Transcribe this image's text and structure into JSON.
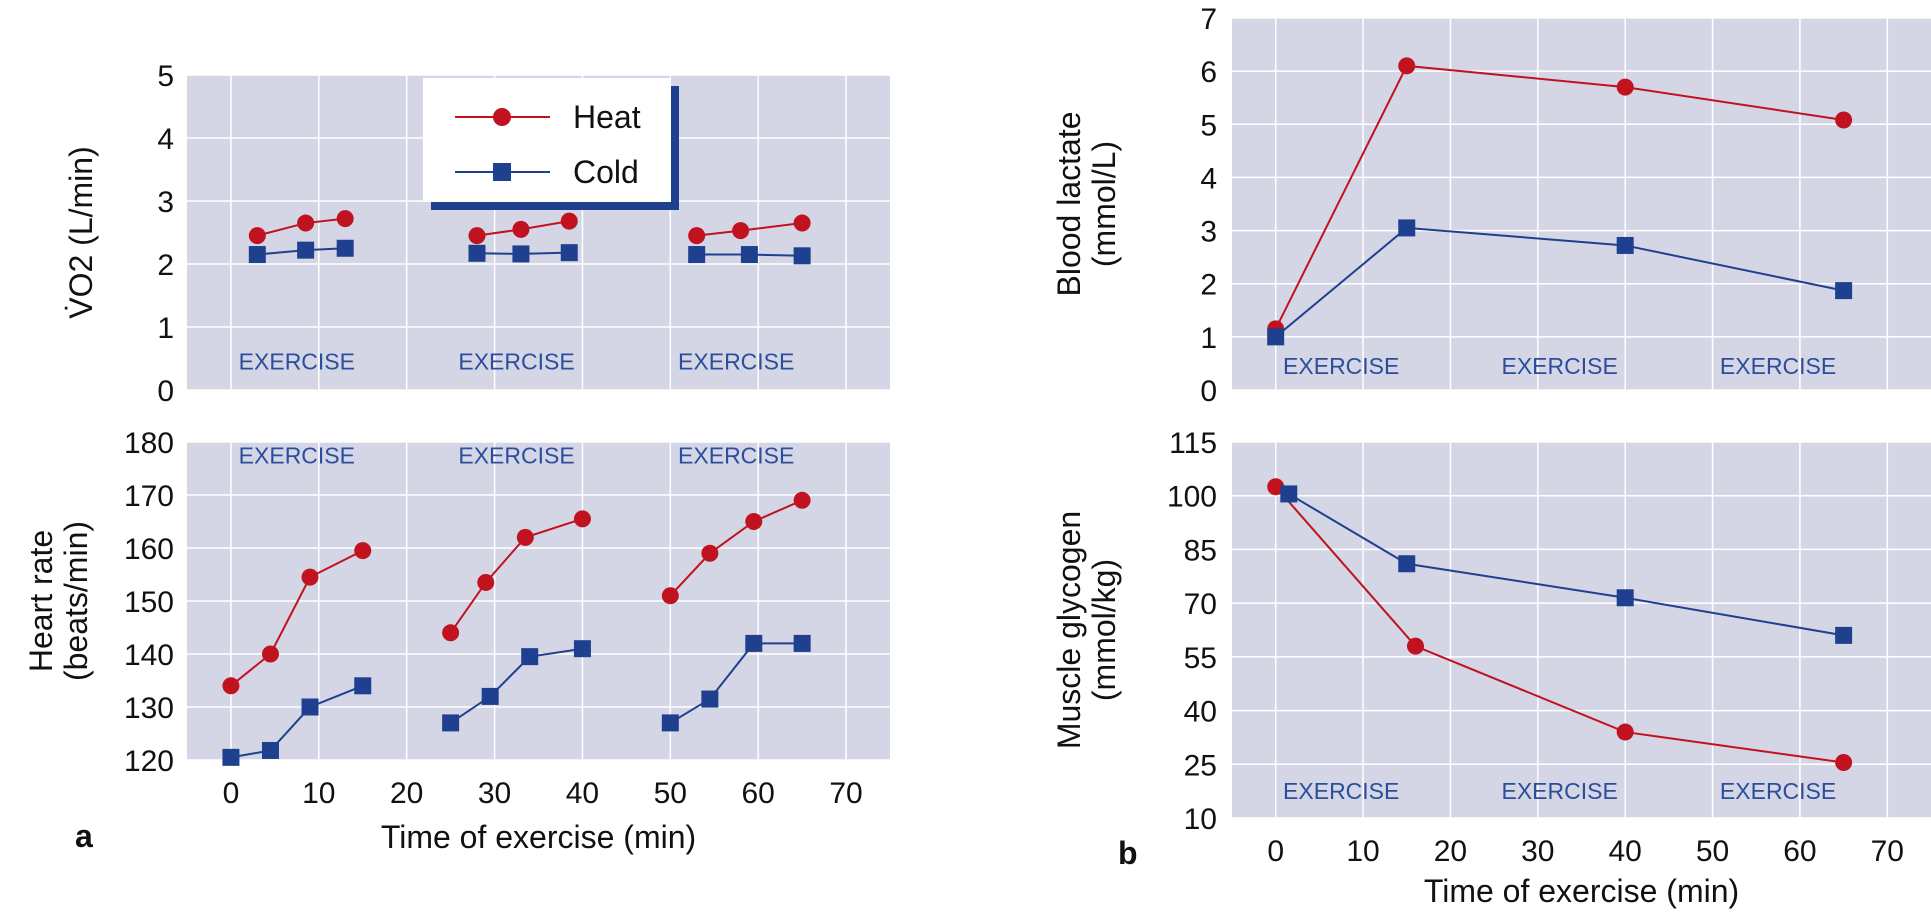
{
  "colors": {
    "heat": "#c1121f",
    "cold": "#1f3f8f",
    "panel": "#d4d6e6",
    "grid": "#ffffff",
    "exercise_text": "#2b4e9c"
  },
  "legend": {
    "heat": "Heat",
    "cold": "Cold"
  },
  "exercise_label": "EXERCISE",
  "chart_data": [
    {
      "id": "vo2",
      "type": "line",
      "panel_letter": "",
      "ylabel": "V̇O2 (L/min)",
      "xlim": [
        -5,
        75
      ],
      "ylim": [
        0,
        5
      ],
      "xticks": [],
      "yticks": [
        0,
        1,
        2,
        3,
        4,
        5
      ],
      "series": [
        {
          "name": "Heat",
          "segments": [
            [
              [
                3,
                2.45
              ],
              [
                8.5,
                2.65
              ],
              [
                13,
                2.72
              ]
            ],
            [
              [
                28,
                2.45
              ],
              [
                33,
                2.55
              ],
              [
                38.5,
                2.68
              ]
            ],
            [
              [
                53,
                2.45
              ],
              [
                58,
                2.53
              ],
              [
                65,
                2.65
              ]
            ]
          ]
        },
        {
          "name": "Cold",
          "segments": [
            [
              [
                3,
                2.15
              ],
              [
                8.5,
                2.22
              ],
              [
                13,
                2.25
              ]
            ],
            [
              [
                28,
                2.17
              ],
              [
                33,
                2.16
              ],
              [
                38.5,
                2.18
              ]
            ],
            [
              [
                53,
                2.15
              ],
              [
                59,
                2.15
              ],
              [
                65,
                2.13
              ]
            ]
          ]
        }
      ],
      "exercise_labels": [
        {
          "x": 7.5,
          "y": 0.45
        },
        {
          "x": 32.5,
          "y": 0.45
        },
        {
          "x": 57.5,
          "y": 0.45
        }
      ]
    },
    {
      "id": "hr",
      "type": "line",
      "panel_letter": "a",
      "ylabel": [
        "Heart rate",
        "(beats/min)"
      ],
      "xlabel": "Time of exercise (min)",
      "xlim": [
        -5,
        75
      ],
      "ylim": [
        120,
        180
      ],
      "xticks": [
        0,
        10,
        20,
        30,
        40,
        50,
        60,
        70
      ],
      "yticks": [
        120,
        130,
        140,
        150,
        160,
        170,
        180
      ],
      "series": [
        {
          "name": "Heat",
          "segments": [
            [
              [
                0,
                134
              ],
              [
                4.5,
                140
              ],
              [
                9,
                154.5
              ],
              [
                15,
                159.5
              ]
            ],
            [
              [
                25,
                144
              ],
              [
                29,
                153.5
              ],
              [
                33.5,
                162
              ],
              [
                40,
                165.5
              ]
            ],
            [
              [
                50,
                151
              ],
              [
                54.5,
                159
              ],
              [
                59.5,
                165
              ],
              [
                65,
                169
              ]
            ]
          ]
        },
        {
          "name": "Cold",
          "segments": [
            [
              [
                0,
                120.5
              ],
              [
                4.5,
                121.8
              ],
              [
                9,
                130
              ],
              [
                15,
                134
              ]
            ],
            [
              [
                25,
                127
              ],
              [
                29.5,
                132
              ],
              [
                34,
                139.5
              ],
              [
                40,
                141
              ]
            ],
            [
              [
                50,
                127
              ],
              [
                54.5,
                131.5
              ],
              [
                59.5,
                142
              ],
              [
                65,
                142
              ]
            ]
          ]
        }
      ],
      "exercise_labels": [
        {
          "x": 7.5,
          "y": 177.5
        },
        {
          "x": 32.5,
          "y": 177.5
        },
        {
          "x": 57.5,
          "y": 177.5
        }
      ]
    },
    {
      "id": "lactate",
      "type": "line",
      "panel_letter": "",
      "ylabel": [
        "Blood lactate",
        "(mmol/L)"
      ],
      "xlim": [
        -5,
        75
      ],
      "ylim": [
        0,
        7
      ],
      "xticks": [],
      "yticks": [
        0,
        1,
        2,
        3,
        4,
        5,
        6,
        7
      ],
      "series": [
        {
          "name": "Heat",
          "segments": [
            [
              [
                0,
                1.15
              ],
              [
                15,
                6.1
              ],
              [
                40,
                5.7
              ],
              [
                65,
                5.08
              ]
            ]
          ]
        },
        {
          "name": "Cold",
          "segments": [
            [
              [
                0,
                1.0
              ],
              [
                15,
                3.05
              ],
              [
                40,
                2.72
              ],
              [
                65,
                1.87
              ]
            ]
          ]
        }
      ],
      "exercise_labels": [
        {
          "x": 7.5,
          "y": 0.45
        },
        {
          "x": 32.5,
          "y": 0.45
        },
        {
          "x": 57.5,
          "y": 0.45
        }
      ]
    },
    {
      "id": "glycogen",
      "type": "line",
      "panel_letter": "b",
      "ylabel": [
        "Muscle glycogen",
        "(mmol/kg)"
      ],
      "xlabel": "Time of exercise (min)",
      "xlim": [
        -5,
        75
      ],
      "ylim": [
        10,
        115
      ],
      "xticks": [
        0,
        10,
        20,
        30,
        40,
        50,
        60,
        70
      ],
      "yticks": [
        10,
        25,
        40,
        55,
        70,
        85,
        100,
        115
      ],
      "series": [
        {
          "name": "Heat",
          "segments": [
            [
              [
                0,
                102.5
              ],
              [
                16,
                58
              ],
              [
                40,
                34
              ],
              [
                65,
                25.5
              ]
            ]
          ]
        },
        {
          "name": "Cold",
          "segments": [
            [
              [
                1.5,
                100.5
              ],
              [
                15,
                81
              ],
              [
                40,
                71.5
              ],
              [
                65,
                61
              ]
            ]
          ]
        }
      ],
      "exercise_labels": [
        {
          "x": 7.5,
          "y": 17.5
        },
        {
          "x": 32.5,
          "y": 17.5
        },
        {
          "x": 57.5,
          "y": 17.5
        }
      ]
    }
  ]
}
